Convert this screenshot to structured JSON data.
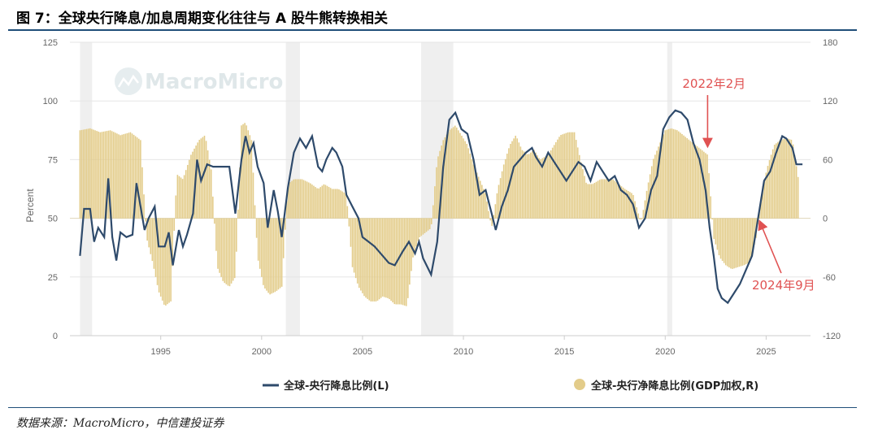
{
  "title": "图 7：全球央行降息/加息周期变化往往与 A 股牛熊转换相关",
  "source": "数据来源：MacroMicro，中信建投证券",
  "watermark": "MacroMicro",
  "chart_data": {
    "type": "line+bar",
    "ylabel": "Percent",
    "x_ticks": [
      "1995",
      "2000",
      "2005",
      "2010",
      "2015",
      "2020",
      "2025"
    ],
    "xlim": [
      1990.5,
      2027.2
    ],
    "left_axis": {
      "ticks": [
        0,
        25,
        50,
        75,
        100,
        125
      ],
      "ylim": [
        0,
        125
      ]
    },
    "right_axis": {
      "ticks": [
        -120,
        -60,
        0,
        60,
        120,
        180
      ],
      "ylim": [
        -120,
        180
      ]
    },
    "shaded_periods": [
      [
        1991.0,
        1991.6
      ],
      [
        2001.2,
        2001.9
      ],
      [
        2007.9,
        2009.5
      ],
      [
        2020.1,
        2020.35
      ]
    ],
    "series": [
      {
        "name": "全球-央行降息比例(L)",
        "type": "line",
        "axis": "left",
        "color": "#2e4a6b",
        "points": [
          [
            1991.0,
            34
          ],
          [
            1991.2,
            54
          ],
          [
            1991.5,
            54
          ],
          [
            1991.7,
            40
          ],
          [
            1991.9,
            46
          ],
          [
            1992.2,
            42
          ],
          [
            1992.4,
            67
          ],
          [
            1992.6,
            42
          ],
          [
            1992.8,
            32
          ],
          [
            1993.0,
            44
          ],
          [
            1993.3,
            42
          ],
          [
            1993.6,
            43
          ],
          [
            1993.8,
            65
          ],
          [
            1994.0,
            55
          ],
          [
            1994.2,
            45
          ],
          [
            1994.4,
            50
          ],
          [
            1994.7,
            55
          ],
          [
            1994.9,
            38
          ],
          [
            1995.2,
            38
          ],
          [
            1995.4,
            44
          ],
          [
            1995.6,
            30
          ],
          [
            1995.9,
            45
          ],
          [
            1996.1,
            38
          ],
          [
            1996.3,
            43
          ],
          [
            1996.6,
            52
          ],
          [
            1996.8,
            75
          ],
          [
            1997.0,
            66
          ],
          [
            1997.3,
            73
          ],
          [
            1997.6,
            72
          ],
          [
            1998.0,
            72
          ],
          [
            1998.4,
            72
          ],
          [
            1998.7,
            52
          ],
          [
            1999.0,
            75
          ],
          [
            1999.2,
            85
          ],
          [
            1999.4,
            78
          ],
          [
            1999.6,
            82
          ],
          [
            1999.8,
            72
          ],
          [
            2000.1,
            65
          ],
          [
            2000.3,
            46
          ],
          [
            2000.6,
            62
          ],
          [
            2000.8,
            53
          ],
          [
            2001.0,
            42
          ],
          [
            2001.3,
            63
          ],
          [
            2001.6,
            78
          ],
          [
            2001.9,
            84
          ],
          [
            2002.2,
            80
          ],
          [
            2002.5,
            85
          ],
          [
            2002.8,
            72
          ],
          [
            2003.0,
            70
          ],
          [
            2003.2,
            75
          ],
          [
            2003.5,
            80
          ],
          [
            2003.7,
            78
          ],
          [
            2004.0,
            72
          ],
          [
            2004.2,
            60
          ],
          [
            2004.5,
            55
          ],
          [
            2004.8,
            50
          ],
          [
            2005.0,
            42
          ],
          [
            2005.3,
            40
          ],
          [
            2005.6,
            38
          ],
          [
            2006.0,
            34
          ],
          [
            2006.3,
            31
          ],
          [
            2006.6,
            30
          ],
          [
            2007.0,
            36
          ],
          [
            2007.3,
            40
          ],
          [
            2007.6,
            35
          ],
          [
            2007.8,
            40
          ],
          [
            2008.0,
            33
          ],
          [
            2008.4,
            26
          ],
          [
            2008.7,
            40
          ],
          [
            2009.0,
            72
          ],
          [
            2009.3,
            92
          ],
          [
            2009.6,
            95
          ],
          [
            2009.9,
            88
          ],
          [
            2010.2,
            86
          ],
          [
            2010.5,
            75
          ],
          [
            2010.8,
            60
          ],
          [
            2011.1,
            62
          ],
          [
            2011.4,
            52
          ],
          [
            2011.6,
            45
          ],
          [
            2011.9,
            55
          ],
          [
            2012.2,
            62
          ],
          [
            2012.5,
            72
          ],
          [
            2012.8,
            75
          ],
          [
            2013.1,
            78
          ],
          [
            2013.4,
            80
          ],
          [
            2013.6,
            76
          ],
          [
            2013.9,
            72
          ],
          [
            2014.2,
            78
          ],
          [
            2014.5,
            74
          ],
          [
            2014.8,
            70
          ],
          [
            2015.1,
            66
          ],
          [
            2015.4,
            70
          ],
          [
            2015.7,
            74
          ],
          [
            2016.0,
            72
          ],
          [
            2016.3,
            66
          ],
          [
            2016.6,
            74
          ],
          [
            2016.9,
            70
          ],
          [
            2017.2,
            66
          ],
          [
            2017.5,
            68
          ],
          [
            2017.8,
            62
          ],
          [
            2018.1,
            60
          ],
          [
            2018.4,
            56
          ],
          [
            2018.7,
            46
          ],
          [
            2019.0,
            50
          ],
          [
            2019.3,
            62
          ],
          [
            2019.6,
            68
          ],
          [
            2019.9,
            88
          ],
          [
            2020.2,
            93
          ],
          [
            2020.5,
            96
          ],
          [
            2020.8,
            95
          ],
          [
            2021.1,
            92
          ],
          [
            2021.4,
            82
          ],
          [
            2021.7,
            75
          ],
          [
            2022.0,
            62
          ],
          [
            2022.2,
            46
          ],
          [
            2022.4,
            34
          ],
          [
            2022.6,
            20
          ],
          [
            2022.8,
            16
          ],
          [
            2023.1,
            14
          ],
          [
            2023.4,
            18
          ],
          [
            2023.7,
            22
          ],
          [
            2024.0,
            28
          ],
          [
            2024.3,
            34
          ],
          [
            2024.6,
            50
          ],
          [
            2024.9,
            66
          ],
          [
            2025.2,
            70
          ],
          [
            2025.5,
            78
          ],
          [
            2025.8,
            85
          ],
          [
            2026.0,
            84
          ],
          [
            2026.3,
            80
          ],
          [
            2026.5,
            73
          ],
          [
            2026.8,
            73
          ]
        ]
      },
      {
        "name": "全球-央行净降息比例(GDP加权,R)",
        "type": "bar",
        "axis": "right",
        "color": "#e3cc8a",
        "points": [
          [
            1991.0,
            90
          ],
          [
            1991.5,
            92
          ],
          [
            1992.0,
            88
          ],
          [
            1992.5,
            90
          ],
          [
            1993.0,
            85
          ],
          [
            1993.5,
            88
          ],
          [
            1994.0,
            80
          ],
          [
            1994.3,
            -20
          ],
          [
            1994.6,
            -45
          ],
          [
            1994.9,
            -75
          ],
          [
            1995.2,
            -90
          ],
          [
            1995.5,
            -85
          ],
          [
            1995.8,
            45
          ],
          [
            1996.1,
            40
          ],
          [
            1996.5,
            65
          ],
          [
            1996.9,
            80
          ],
          [
            1997.2,
            85
          ],
          [
            1997.5,
            50
          ],
          [
            1997.8,
            -50
          ],
          [
            1998.1,
            -65
          ],
          [
            1998.4,
            -70
          ],
          [
            1998.7,
            -60
          ],
          [
            1999.0,
            95
          ],
          [
            1999.2,
            98
          ],
          [
            1999.5,
            80
          ],
          [
            1999.8,
            -40
          ],
          [
            2000.1,
            -70
          ],
          [
            2000.4,
            -78
          ],
          [
            2000.7,
            -75
          ],
          [
            2001.0,
            -70
          ],
          [
            2001.3,
            35
          ],
          [
            2001.6,
            40
          ],
          [
            2002.0,
            40
          ],
          [
            2002.4,
            36
          ],
          [
            2002.8,
            30
          ],
          [
            2003.1,
            35
          ],
          [
            2003.5,
            30
          ],
          [
            2003.8,
            30
          ],
          [
            2004.2,
            25
          ],
          [
            2004.5,
            -50
          ],
          [
            2004.8,
            -70
          ],
          [
            2005.1,
            -80
          ],
          [
            2005.4,
            -85
          ],
          [
            2005.7,
            -85
          ],
          [
            2006.0,
            -80
          ],
          [
            2006.3,
            -82
          ],
          [
            2006.6,
            -88
          ],
          [
            2006.9,
            -88
          ],
          [
            2007.2,
            -90
          ],
          [
            2007.5,
            -40
          ],
          [
            2007.8,
            -20
          ],
          [
            2008.1,
            -15
          ],
          [
            2008.4,
            -10
          ],
          [
            2008.7,
            60
          ],
          [
            2009.0,
            80
          ],
          [
            2009.3,
            90
          ],
          [
            2009.6,
            95
          ],
          [
            2009.9,
            85
          ],
          [
            2010.2,
            75
          ],
          [
            2010.5,
            55
          ],
          [
            2010.8,
            40
          ],
          [
            2011.1,
            25
          ],
          [
            2011.4,
            -10
          ],
          [
            2011.7,
            30
          ],
          [
            2012.0,
            55
          ],
          [
            2012.3,
            75
          ],
          [
            2012.6,
            85
          ],
          [
            2012.9,
            70
          ],
          [
            2013.2,
            65
          ],
          [
            2013.5,
            70
          ],
          [
            2013.8,
            60
          ],
          [
            2014.2,
            65
          ],
          [
            2014.5,
            75
          ],
          [
            2014.8,
            85
          ],
          [
            2015.2,
            88
          ],
          [
            2015.5,
            88
          ],
          [
            2015.8,
            60
          ],
          [
            2016.1,
            35
          ],
          [
            2016.4,
            35
          ],
          [
            2016.8,
            40
          ],
          [
            2017.1,
            40
          ],
          [
            2017.4,
            40
          ],
          [
            2017.7,
            35
          ],
          [
            2018.0,
            30
          ],
          [
            2018.4,
            25
          ],
          [
            2018.8,
            -5
          ],
          [
            2019.1,
            30
          ],
          [
            2019.4,
            60
          ],
          [
            2019.7,
            75
          ],
          [
            2020.0,
            90
          ],
          [
            2020.3,
            92
          ],
          [
            2020.6,
            90
          ],
          [
            2020.9,
            85
          ],
          [
            2021.2,
            80
          ],
          [
            2021.5,
            75
          ],
          [
            2021.8,
            70
          ],
          [
            2022.1,
            65
          ],
          [
            2022.4,
            -20
          ],
          [
            2022.7,
            -40
          ],
          [
            2023.0,
            -48
          ],
          [
            2023.3,
            -52
          ],
          [
            2023.6,
            -50
          ],
          [
            2023.9,
            -48
          ],
          [
            2024.2,
            -45
          ],
          [
            2024.5,
            -20
          ],
          [
            2024.8,
            30
          ],
          [
            2025.1,
            55
          ],
          [
            2025.4,
            75
          ],
          [
            2025.7,
            80
          ],
          [
            2026.0,
            82
          ],
          [
            2026.3,
            80
          ],
          [
            2026.6,
            40
          ]
        ]
      }
    ],
    "annotations": [
      {
        "text": "2022年2月",
        "x": 2022.1
      },
      {
        "text": "2024年9月",
        "x": 2024.7
      }
    ]
  }
}
